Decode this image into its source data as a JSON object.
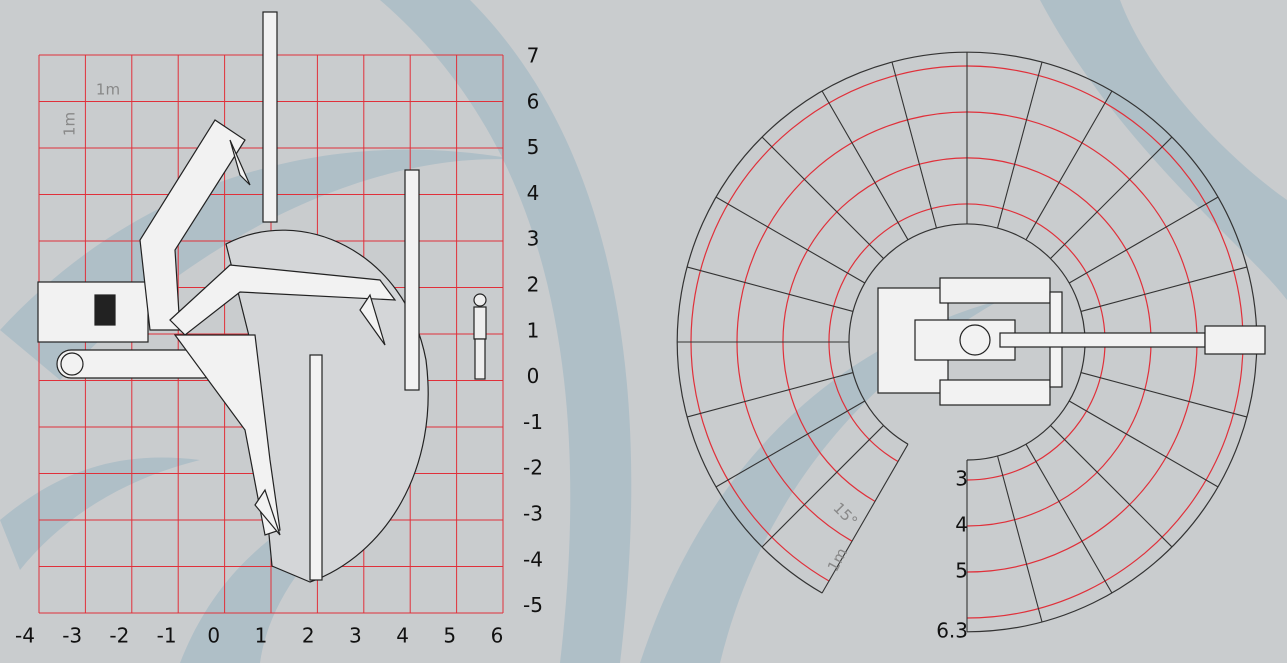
{
  "reach_side": {
    "x_labels": [
      -4,
      -3,
      -2,
      -1,
      0,
      1,
      2,
      3,
      4,
      5,
      6
    ],
    "y_labels": [
      7,
      6,
      5,
      4,
      3,
      2,
      1,
      0,
      -1,
      -2,
      -3,
      -4,
      -5
    ],
    "cell_width_label": "1m",
    "cell_height_label": "1m"
  },
  "reach_top": {
    "radius_labels": [
      3,
      4,
      5,
      6.3
    ],
    "angle_label": "15°",
    "unit_label": "1m"
  }
}
